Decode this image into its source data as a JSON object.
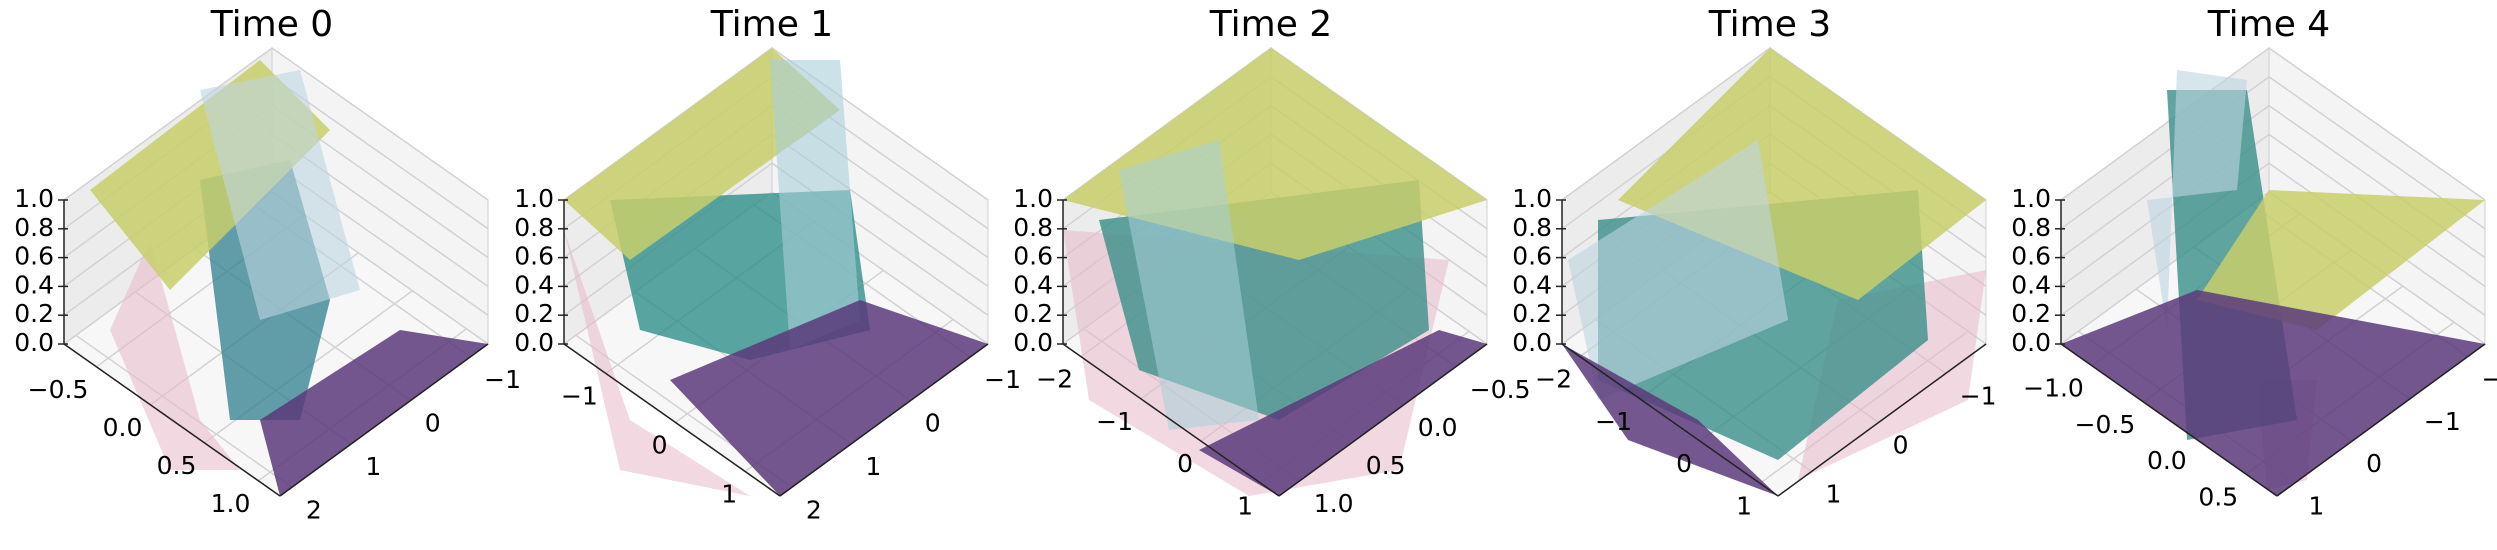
{
  "chart_data": [
    {
      "type": "surface3d",
      "title": "Time 0",
      "zlim": [
        0,
        1
      ],
      "zticks": [
        {
          "value": 0,
          "label": "0.0"
        },
        {
          "value": 0.2,
          "label": "0.2"
        },
        {
          "value": 0.4,
          "label": "0.4"
        },
        {
          "value": 0.6,
          "label": "0.6"
        },
        {
          "value": 0.8,
          "label": "0.8"
        },
        {
          "value": 1,
          "label": "1.0"
        }
      ],
      "xlim": [
        -0.8,
        1.2
      ],
      "xticks": [
        {
          "value": -0.5,
          "label": "−0.5"
        },
        {
          "value": 0,
          "label": "0.0"
        },
        0.5,
        {
          "value": 1,
          "label": "1.0"
        }
      ],
      "ylim": [
        -1.3,
        2.2
      ],
      "yticks": [
        {
          "value": -1,
          "label": "−1"
        },
        0,
        1,
        2
      ]
    },
    {
      "type": "surface3d",
      "title": "Time 1",
      "zlim": [
        0,
        1
      ],
      "zticks": [
        {
          "value": 0,
          "label": "0.0"
        },
        {
          "value": 0.2,
          "label": "0.2"
        },
        {
          "value": 0.4,
          "label": "0.4"
        },
        {
          "value": 0.6,
          "label": "0.6"
        },
        {
          "value": 0.8,
          "label": "0.8"
        },
        {
          "value": 1,
          "label": "1.0"
        }
      ],
      "xlim": [
        -1.6,
        1.5
      ],
      "xticks": [
        {
          "value": -1,
          "label": "−1"
        },
        0,
        1
      ],
      "ylim": [
        -1.3,
        2.2
      ],
      "yticks": [
        {
          "value": -1,
          "label": "−1"
        },
        0,
        1,
        2
      ]
    },
    {
      "type": "surface3d",
      "title": "Time 2",
      "zlim": [
        0,
        1
      ],
      "zticks": [
        {
          "value": 0,
          "label": "0.0"
        },
        {
          "value": 0.2,
          "label": "0.2"
        },
        {
          "value": 0.4,
          "label": "0.4"
        },
        {
          "value": 0.6,
          "label": "0.6"
        },
        {
          "value": 0.8,
          "label": "0.8"
        },
        {
          "value": 1,
          "label": "1.0"
        }
      ],
      "xlim": [
        -2.3,
        1.3
      ],
      "xticks": [
        {
          "value": -2,
          "label": "−2"
        },
        {
          "value": -1,
          "label": "−1"
        },
        0,
        1
      ],
      "ylim": [
        -0.8,
        1.2
      ],
      "yticks": [
        {
          "value": -0.5,
          "label": "−0.5"
        },
        {
          "value": 0,
          "label": "0.0"
        },
        0.5,
        {
          "value": 1,
          "label": "1.0"
        }
      ]
    },
    {
      "type": "surface3d",
      "title": "Time 3",
      "zlim": [
        0,
        1
      ],
      "zticks": [
        {
          "value": 0,
          "label": "0.0"
        },
        {
          "value": 0.2,
          "label": "0.2"
        },
        {
          "value": 0.4,
          "label": "0.4"
        },
        {
          "value": 0.6,
          "label": "0.6"
        },
        {
          "value": 0.8,
          "label": "0.8"
        },
        {
          "value": 1,
          "label": "1.0"
        }
      ],
      "xlim": [
        -2.3,
        1.3
      ],
      "xticks": [
        {
          "value": -2,
          "label": "−2"
        },
        {
          "value": -1,
          "label": "−1"
        },
        0,
        1
      ],
      "ylim": [
        -1.6,
        1.5
      ],
      "yticks": [
        {
          "value": -1,
          "label": "−1"
        },
        0,
        1
      ]
    },
    {
      "type": "surface3d",
      "title": "Time 4",
      "zlim": [
        0,
        1
      ],
      "zticks": [
        {
          "value": 0,
          "label": "0.0"
        },
        {
          "value": 0.2,
          "label": "0.2"
        },
        {
          "value": 0.4,
          "label": "0.4"
        },
        {
          "value": 0.6,
          "label": "0.6"
        },
        {
          "value": 0.8,
          "label": "0.8"
        },
        {
          "value": 1,
          "label": "1.0"
        }
      ],
      "xlim": [
        -1.3,
        0.8
      ],
      "xticks": [
        {
          "value": -1,
          "label": "−1.0"
        },
        {
          "value": -0.5,
          "label": "−0.5"
        },
        {
          "value": 0,
          "label": "0.0"
        },
        0.5
      ],
      "ylim": [
        -2.3,
        1.3
      ],
      "yticks": [
        {
          "value": -2,
          "label": "−2"
        },
        {
          "value": -1,
          "label": "−1"
        },
        0,
        1
      ]
    }
  ]
}
